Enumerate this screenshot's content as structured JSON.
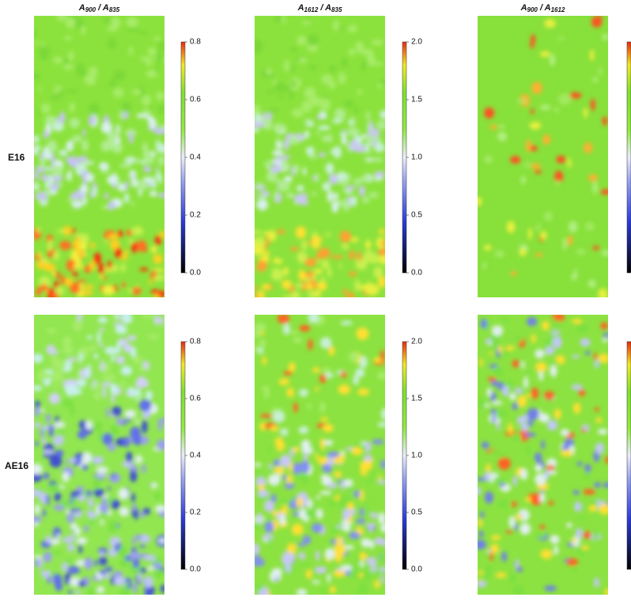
{
  "columns": [
    {
      "title": [
        "A",
        "900",
        " / A",
        "835"
      ]
    },
    {
      "title": [
        "A",
        "1612",
        " / A",
        "835"
      ]
    },
    {
      "title": [
        "A",
        "900",
        " / A",
        "1612"
      ]
    }
  ],
  "rows": [
    "E16",
    "AE16"
  ],
  "colorbars": [
    {
      "lim": [
        0,
        0.8
      ],
      "ticks": [
        {
          "value": 0,
          "label": "0.0"
        },
        0.2,
        0.4,
        0.6,
        0.8
      ]
    },
    {
      "lim": [
        0,
        2.0
      ],
      "ticks": [
        {
          "value": 0,
          "label": "0.0"
        },
        0.5,
        {
          "value": 1,
          "label": "1.0"
        },
        1.5,
        {
          "value": 2,
          "label": "2.0"
        }
      ]
    }
  ]
}
